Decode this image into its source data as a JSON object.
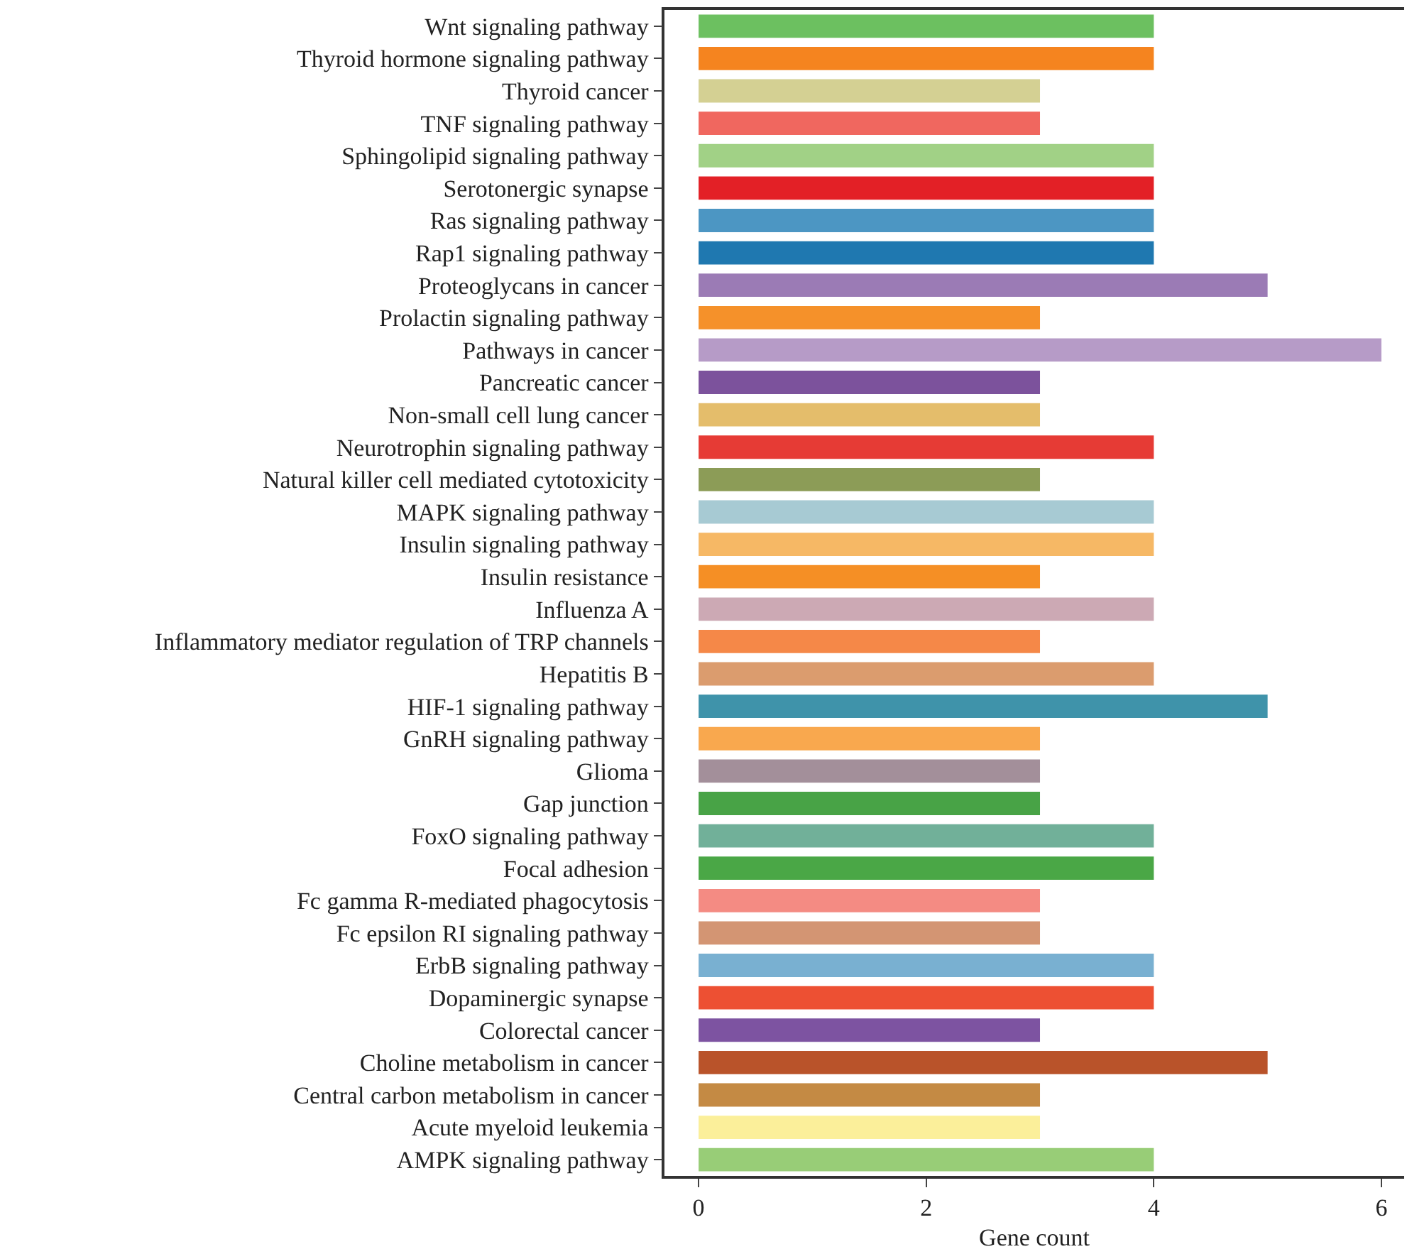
{
  "chart_data": {
    "type": "bar",
    "orientation": "horizontal",
    "xlabel": "Gene count",
    "categories": [
      "Wnt signaling pathway",
      "Thyroid hormone signaling pathway",
      "Thyroid cancer",
      "TNF signaling pathway",
      "Sphingolipid signaling pathway",
      "Serotonergic synapse",
      "Ras signaling pathway",
      "Rap1 signaling pathway",
      "Proteoglycans in cancer",
      "Prolactin signaling pathway",
      "Pathways in cancer",
      "Pancreatic cancer",
      "Non-small cell lung cancer",
      "Neurotrophin signaling pathway",
      "Natural killer cell mediated cytotoxicity",
      "MAPK signaling pathway",
      "Insulin signaling pathway",
      "Insulin resistance",
      "Influenza A",
      "Inflammatory mediator regulation of TRP channels",
      "Hepatitis B",
      "HIF-1 signaling pathway",
      "GnRH signaling pathway",
      "Glioma",
      "Gap junction",
      "FoxO signaling pathway",
      "Focal adhesion",
      "Fc gamma R-mediated phagocytosis",
      "Fc epsilon RI signaling pathway",
      "ErbB signaling pathway",
      "Dopaminergic synapse",
      "Colorectal cancer",
      "Choline metabolism in cancer",
      "Central carbon metabolism in cancer",
      "Acute myeloid leukemia",
      "AMPK signaling pathway"
    ],
    "values": [
      4,
      4,
      3,
      3,
      4,
      4,
      4,
      4,
      5,
      3,
      6,
      3,
      3,
      4,
      3,
      4,
      4,
      3,
      4,
      3,
      4,
      5,
      3,
      3,
      3,
      4,
      4,
      3,
      3,
      4,
      4,
      3,
      5,
      3,
      3,
      4
    ],
    "colors": [
      "#6cc060",
      "#f5841f",
      "#d4d093",
      "#f0675f",
      "#a1d186",
      "#e32026",
      "#4c96c3",
      "#1f78b0",
      "#9b7bb5",
      "#f5912a",
      "#b69bc7",
      "#7c529c",
      "#e4bd6b",
      "#e63b35",
      "#8c9c57",
      "#a7cad3",
      "#f6b865",
      "#f58f25",
      "#cca9b4",
      "#f58848",
      "#db9c6e",
      "#3f93aa",
      "#f9a84e",
      "#a38f9a",
      "#48a346",
      "#71b099",
      "#4aa746",
      "#f48b83",
      "#d39573",
      "#79b0d1",
      "#ed5033",
      "#7d53a1",
      "#b9532a",
      "#c48a44",
      "#fbef9a",
      "#98cd77"
    ],
    "xlim": [
      -0.3,
      6.2
    ],
    "xticks": [
      0,
      2,
      4,
      6
    ],
    "grid": false
  }
}
